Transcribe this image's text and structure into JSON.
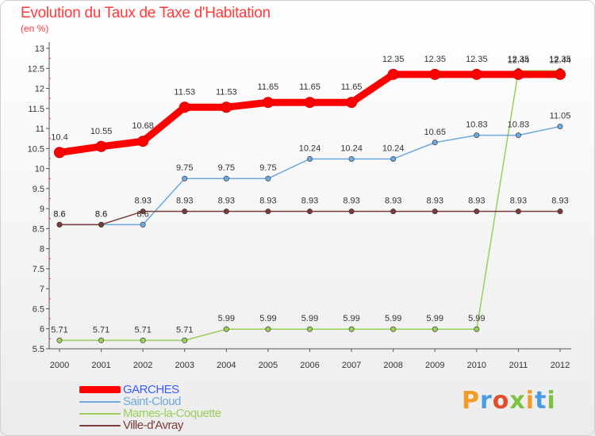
{
  "header": {
    "title": "Evolution du Taux de Taxe d'Habitation",
    "unit": "(en %)"
  },
  "logo": {
    "letters": [
      "P",
      "r",
      "o",
      "x",
      "i",
      "t",
      "i"
    ],
    "colors": [
      "#f59a23",
      "#4b9be0",
      "#e24d2a",
      "#7cc242",
      "#f59a23",
      "#4b9be0",
      "#7cc242"
    ]
  },
  "chart_data": {
    "type": "line",
    "title": "Evolution du Taux de Taxe d'Habitation",
    "ylabel": "(en %)",
    "xlabel": "",
    "x": [
      "2000",
      "2001",
      "2002",
      "2003",
      "2004",
      "2005",
      "2006",
      "2007",
      "2008",
      "2009",
      "2010",
      "2011",
      "2012"
    ],
    "ylim": [
      5.5,
      13
    ],
    "yticks": [
      "5.5",
      "6",
      "6.5",
      "7",
      "7.5",
      "8",
      "8.5",
      "9",
      "9.5",
      "10",
      "10.5",
      "11",
      "11.5",
      "12",
      "12.5",
      "13"
    ],
    "grid": false,
    "legend_position": "bottom-left",
    "series": [
      {
        "name": "GARCHES",
        "color": "#ff0000",
        "values": [
          10.4,
          10.55,
          10.68,
          11.53,
          11.53,
          11.65,
          11.65,
          11.65,
          12.35,
          12.35,
          12.35,
          12.35,
          12.35
        ],
        "labels": [
          "10.4",
          "10.55",
          "10.68",
          "11.53",
          "11.53",
          "11.65",
          "11.65",
          "11.65",
          "12.35",
          "12.35",
          "12.35",
          "12.35",
          "12.35"
        ]
      },
      {
        "name": "Saint-Cloud",
        "color": "#6fa8dc",
        "values": [
          8.6,
          8.6,
          8.6,
          9.75,
          9.75,
          9.75,
          10.24,
          10.24,
          10.24,
          10.65,
          10.83,
          10.83,
          11.05
        ],
        "labels": [
          "8.6",
          "8.6",
          "8.6",
          "9.75",
          "9.75",
          "9.75",
          "10.24",
          "10.24",
          "10.24",
          "10.65",
          "10.83",
          "10.83",
          "11.05"
        ]
      },
      {
        "name": "Marnes-la-Coquette",
        "color": "#9acd5a",
        "values": [
          5.71,
          5.71,
          5.71,
          5.71,
          5.99,
          5.99,
          5.99,
          5.99,
          5.99,
          5.99,
          5.99,
          12.44,
          12.44
        ],
        "labels": [
          "5.71",
          "5.71",
          "5.71",
          "5.71",
          "5.99",
          "5.99",
          "5.99",
          "5.99",
          "5.99",
          "5.99",
          "5.99",
          "12.44",
          "12.44"
        ]
      },
      {
        "name": "Ville-d'Avray",
        "color": "#7a3b3b",
        "values": [
          8.6,
          8.6,
          8.93,
          8.93,
          8.93,
          8.93,
          8.93,
          8.93,
          8.93,
          8.93,
          8.93,
          8.93,
          8.93
        ],
        "labels": [
          "8.6",
          "8.6",
          "8.93",
          "8.93",
          "8.93",
          "8.93",
          "8.93",
          "8.93",
          "8.93",
          "8.93",
          "8.93",
          "8.93",
          "8.93"
        ]
      }
    ]
  }
}
